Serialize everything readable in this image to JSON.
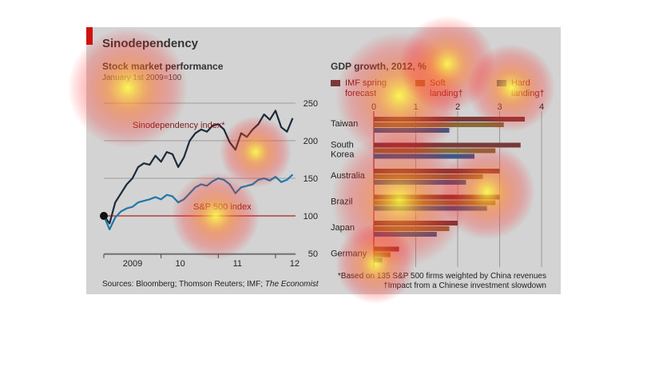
{
  "page": {
    "title": "Sinodependency",
    "sources": "Sources: Bloomberg; Thomson Reuters; IMF; ",
    "sources_italic": "The Economist",
    "note_star": "*Based on 135 S&P 500 firms weighted by China revenues",
    "note_dagger": "†Impact from a Chinese investment slowdown"
  },
  "colors": {
    "panel": "#d3d3d3",
    "accent_red": "#d01010",
    "sino_line": "#1a2a3a",
    "sp_line": "#1f78a8",
    "imf_bar": "#7a3a3a",
    "soft_bar": "#8a6a3a",
    "hard_bar": "#3a5a8a"
  },
  "chart_data": [
    {
      "type": "line",
      "title": "Stock market performance",
      "subtitle": "January 1st 2009=100",
      "xlabel": "",
      "ylabel": "",
      "x_ticks": [
        "2009",
        "10",
        "11",
        "12"
      ],
      "y_ticks": [
        50,
        100,
        150,
        200,
        250
      ],
      "ylim": [
        50,
        250
      ],
      "xlim": [
        2009.0,
        2012.35
      ],
      "grid": true,
      "series": [
        {
          "name": "Sinodependency index*",
          "x": [
            2009.0,
            2009.1,
            2009.2,
            2009.3,
            2009.4,
            2009.5,
            2009.6,
            2009.7,
            2009.8,
            2009.9,
            2010.0,
            2010.1,
            2010.2,
            2010.3,
            2010.4,
            2010.5,
            2010.6,
            2010.7,
            2010.8,
            2010.9,
            2011.0,
            2011.1,
            2011.2,
            2011.3,
            2011.4,
            2011.5,
            2011.6,
            2011.7,
            2011.8,
            2011.9,
            2012.0,
            2012.1,
            2012.2,
            2012.3
          ],
          "values": [
            100,
            90,
            118,
            130,
            142,
            150,
            165,
            170,
            168,
            180,
            172,
            185,
            182,
            165,
            178,
            200,
            210,
            215,
            212,
            220,
            222,
            215,
            198,
            188,
            210,
            205,
            215,
            222,
            235,
            228,
            240,
            218,
            212,
            230
          ]
        },
        {
          "name": "S&P 500 index",
          "x": [
            2009.0,
            2009.1,
            2009.2,
            2009.3,
            2009.4,
            2009.5,
            2009.6,
            2009.7,
            2009.8,
            2009.9,
            2010.0,
            2010.1,
            2010.2,
            2010.3,
            2010.4,
            2010.5,
            2010.6,
            2010.7,
            2010.8,
            2010.9,
            2011.0,
            2011.1,
            2011.2,
            2011.3,
            2011.4,
            2011.5,
            2011.6,
            2011.7,
            2011.8,
            2011.9,
            2012.0,
            2012.1,
            2012.2,
            2012.3
          ],
          "values": [
            100,
            82,
            98,
            106,
            110,
            112,
            118,
            120,
            122,
            125,
            122,
            128,
            126,
            118,
            122,
            130,
            138,
            142,
            140,
            146,
            150,
            148,
            142,
            130,
            138,
            140,
            142,
            148,
            150,
            147,
            152,
            145,
            148,
            155
          ]
        }
      ],
      "annotations": [
        "Sinodependency index*",
        "S&P 500 index"
      ]
    },
    {
      "type": "bar",
      "orientation": "horizontal",
      "title": "GDP growth, 2012, %",
      "categories": [
        "Taiwan",
        "South Korea",
        "Australia",
        "Brazil",
        "Japan",
        "Germany"
      ],
      "x_ticks": [
        0,
        1,
        2,
        3,
        4
      ],
      "xlim": [
        0,
        4
      ],
      "legend_placement": "top",
      "series": [
        {
          "name": "IMF spring forecast",
          "values": [
            3.6,
            3.5,
            3.0,
            3.0,
            2.0,
            0.6
          ]
        },
        {
          "name": "Soft landing†",
          "values": [
            3.1,
            2.9,
            2.6,
            2.9,
            1.8,
            0.4
          ]
        },
        {
          "name": "Hard landing†",
          "values": [
            1.8,
            2.4,
            2.2,
            2.7,
            1.5,
            0.2
          ]
        }
      ]
    }
  ]
}
